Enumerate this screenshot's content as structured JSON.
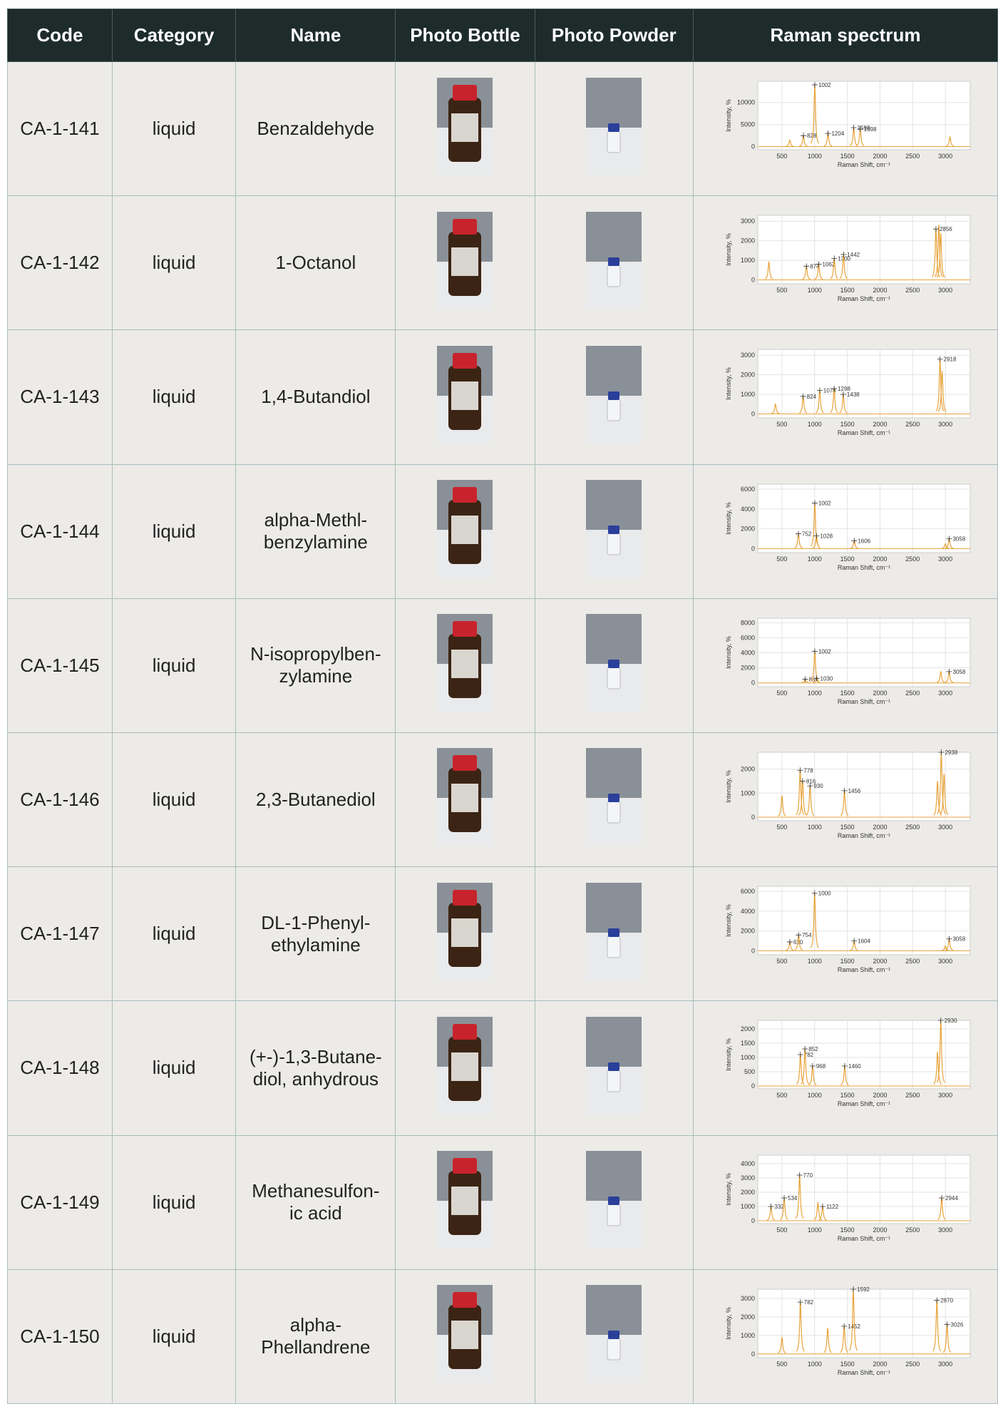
{
  "table": {
    "headers": [
      "Code",
      "Category",
      "Name",
      "Photo Bottle",
      "Photo Powder",
      "Raman spectrum"
    ],
    "spectrum_axes": {
      "xlim": [
        130,
        3380
      ],
      "xticks": [
        500,
        1000,
        1500,
        2000,
        2500,
        3000
      ],
      "xlabel": "Raman Shift, cm⁻¹",
      "ylabel": "Intensity, %"
    },
    "rows": [
      {
        "code": "CA-1-141",
        "category": "liquid",
        "name": "Benzaldehyde",
        "spectrum": {
          "ylim": [
            -700,
            14800
          ],
          "yticks": [
            0,
            5000,
            10000
          ],
          "peaks": {
            "x": [
              828,
              1002,
              1204,
              1598,
              1698
            ],
            "y": [
              2500,
              14000,
              3000,
              4300,
              4000
            ]
          },
          "bands": {
            "x": [
              620,
              3070
            ],
            "y": [
              1500,
              2200
            ]
          }
        }
      },
      {
        "code": "CA-1-142",
        "category": "liquid",
        "name": "1-Octanol",
        "spectrum": {
          "ylim": [
            -200,
            3300
          ],
          "yticks": [
            0,
            1000,
            2000,
            3000
          ],
          "peaks": {
            "x": [
              874,
              1062,
              1300,
              1442,
              2856
            ],
            "y": [
              700,
              800,
              1100,
              1300,
              2600
            ]
          },
          "bands": {
            "x": [
              300,
              2900,
              2930
            ],
            "y": [
              900,
              2800,
              2400
            ]
          }
        }
      },
      {
        "code": "CA-1-143",
        "category": "liquid",
        "name": "1,4-Butandiol",
        "spectrum": {
          "ylim": [
            -200,
            3300
          ],
          "yticks": [
            0,
            1000,
            2000,
            3000
          ],
          "peaks": {
            "x": [
              824,
              1078,
              1298,
              1438,
              2918
            ],
            "y": [
              900,
              1200,
              1300,
              1000,
              2800
            ]
          },
          "bands": {
            "x": [
              400,
              2950
            ],
            "y": [
              500,
              2200
            ]
          }
        }
      },
      {
        "code": "CA-1-144",
        "category": "liquid",
        "name": "alpha-Methl-\nbenzylamine",
        "spectrum": {
          "ylim": [
            -400,
            6500
          ],
          "yticks": [
            0,
            2000,
            4000,
            6000
          ],
          "peaks": {
            "x": [
              752,
              1002,
              1028,
              1606,
              3058
            ],
            "y": [
              1500,
              4600,
              1300,
              800,
              1000
            ]
          },
          "bands": {
            "x": [
              3000
            ],
            "y": [
              500
            ]
          }
        }
      },
      {
        "code": "CA-1-145",
        "category": "liquid",
        "name": "N-isopropylben-\nzylamine",
        "spectrum": {
          "ylim": [
            -500,
            8600
          ],
          "yticks": [
            0,
            2000,
            4000,
            6000,
            8000
          ],
          "peaks": {
            "x": [
              856,
              1002,
              1030,
              3058
            ],
            "y": [
              500,
              4200,
              600,
              1500
            ]
          },
          "bands": {
            "x": [
              2930
            ],
            "y": [
              1500
            ]
          }
        }
      },
      {
        "code": "CA-1-146",
        "category": "liquid",
        "name": "2,3-Butanediol",
        "spectrum": {
          "ylim": [
            -150,
            2700
          ],
          "yticks": [
            0,
            1000,
            2000
          ],
          "peaks": {
            "x": [
              778,
              816,
              930,
              1456,
              2938
            ],
            "y": [
              1950,
              1500,
              1300,
              1100,
              2700
            ]
          },
          "bands": {
            "x": [
              500,
              2880,
              2980
            ],
            "y": [
              900,
              1500,
              1800
            ]
          }
        }
      },
      {
        "code": "CA-1-147",
        "category": "liquid",
        "name": "DL-1-Phenyl-\nethylamine",
        "spectrum": {
          "ylim": [
            -400,
            6500
          ],
          "yticks": [
            0,
            2000,
            4000,
            6000
          ],
          "peaks": {
            "x": [
              620,
              754,
              1000,
              1604,
              3058
            ],
            "y": [
              900,
              1600,
              5800,
              1000,
              1200
            ]
          },
          "bands": {
            "x": [
              3000
            ],
            "y": [
              500
            ]
          }
        }
      },
      {
        "code": "CA-1-148",
        "category": "liquid",
        "name": "(+-)-1,3-Butane-\ndiol, anhydrous",
        "spectrum": {
          "ylim": [
            -100,
            2300
          ],
          "yticks": [
            0,
            500,
            1000,
            1500,
            2000
          ],
          "peaks": {
            "x": [
              782,
              852,
              968,
              1460,
              2930
            ],
            "y": [
              1100,
              1300,
              700,
              700,
              2300
            ]
          },
          "bands": {
            "x": [
              2880
            ],
            "y": [
              1200
            ]
          }
        }
      },
      {
        "code": "CA-1-149",
        "category": "liquid",
        "name": "Methanesulfon-\nic acid",
        "spectrum": {
          "ylim": [
            -200,
            4600
          ],
          "yticks": [
            0,
            1000,
            2000,
            3000,
            4000
          ],
          "peaks": {
            "x": [
              332,
              534,
              770,
              1122,
              2944
            ],
            "y": [
              1000,
              1600,
              3200,
              1000,
              1600
            ]
          },
          "bands": {
            "x": [
              1050
            ],
            "y": [
              1300
            ]
          }
        }
      },
      {
        "code": "CA-1-150",
        "category": "liquid",
        "name": "alpha-\nPhellandrene",
        "spectrum": {
          "ylim": [
            -200,
            3500
          ],
          "yticks": [
            0,
            1000,
            2000,
            3000
          ],
          "peaks": {
            "x": [
              782,
              1452,
              1592,
              2870,
              3026
            ],
            "y": [
              2800,
              1500,
              3500,
              2900,
              1600
            ]
          },
          "bands": {
            "x": [
              500,
              1200
            ],
            "y": [
              900,
              1400
            ]
          }
        }
      }
    ]
  }
}
